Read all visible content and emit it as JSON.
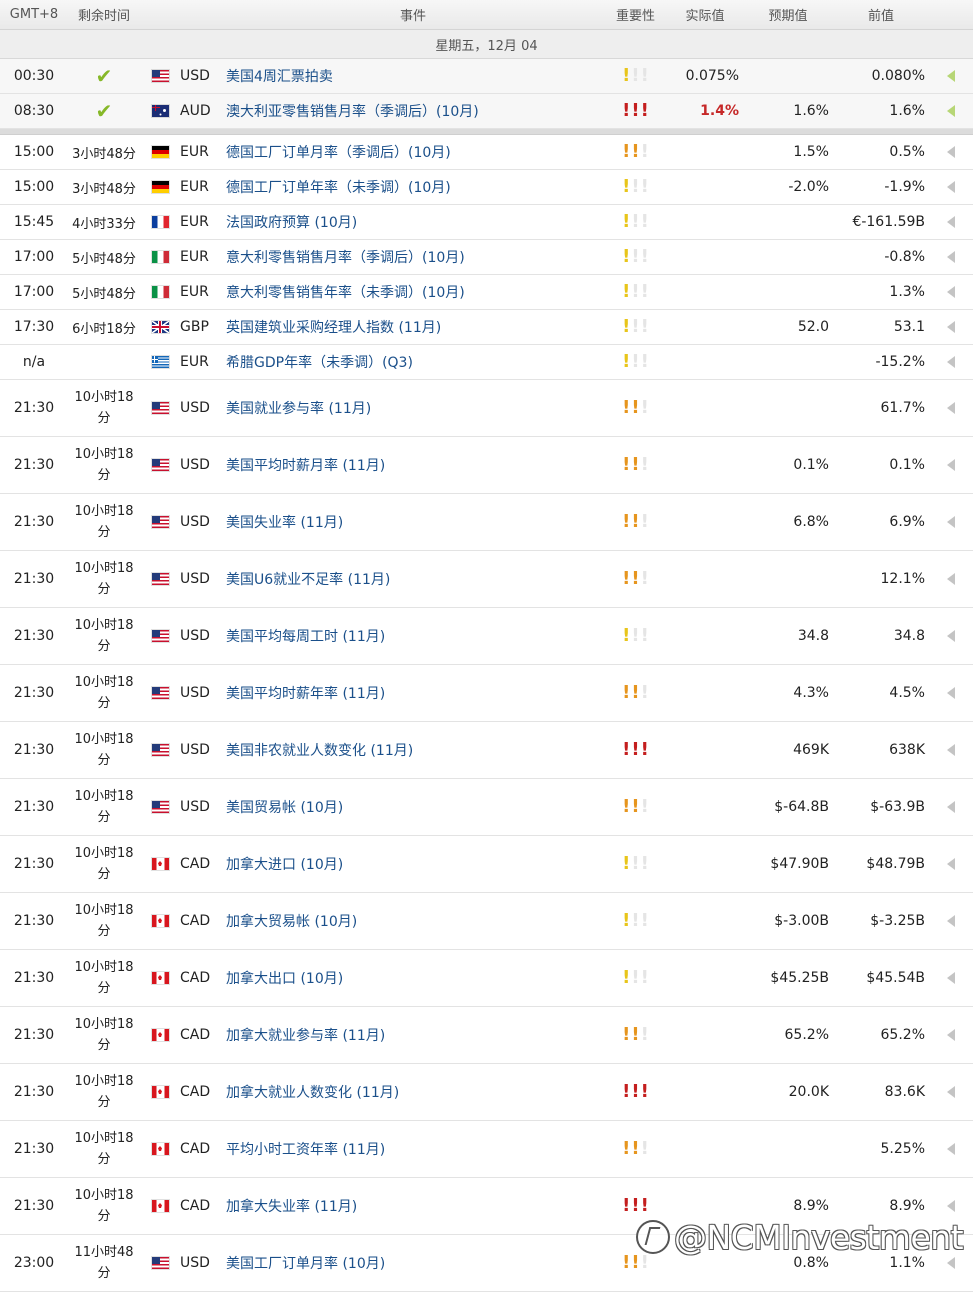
{
  "header": {
    "timezone": "GMT+8",
    "remaining": "剩余时间",
    "event": "事件",
    "importance": "重要性",
    "actual": "实际值",
    "forecast": "预期值",
    "previous": "前值"
  },
  "day_label": "星期五，12月 04",
  "colors": {
    "actual_highlight": "#c62828",
    "check": "#86b828",
    "event_link": "#1a4f8a"
  },
  "released": [
    {
      "time": "00:30",
      "status_icon": "check-icon",
      "flag": "us",
      "currency": "USD",
      "event": "美国4周汇票拍卖",
      "importance": "low",
      "actual": "0.075%",
      "forecast": "",
      "previous": "0.080%",
      "actual_highlight": false
    },
    {
      "time": "08:30",
      "status_icon": "check-icon",
      "flag": "au",
      "currency": "AUD",
      "event": "澳大利亚零售销售月率（季调后）(10月)",
      "importance": "high",
      "actual": "1.4%",
      "forecast": "1.6%",
      "previous": "1.6%",
      "actual_highlight": true
    }
  ],
  "upcoming": [
    {
      "time": "15:00",
      "rem": "3小时48分",
      "flag": "de",
      "currency": "EUR",
      "event": "德国工厂订单月率（季调后）(10月)",
      "importance": "med",
      "actual": "",
      "forecast": "1.5%",
      "previous": "0.5%"
    },
    {
      "time": "15:00",
      "rem": "3小时48分",
      "flag": "de",
      "currency": "EUR",
      "event": "德国工厂订单年率（未季调）(10月)",
      "importance": "low",
      "actual": "",
      "forecast": "-2.0%",
      "previous": "-1.9%"
    },
    {
      "time": "15:45",
      "rem": "4小时33分",
      "flag": "fr",
      "currency": "EUR",
      "event": "法国政府预算 (10月)",
      "importance": "low",
      "actual": "",
      "forecast": "",
      "previous": "€-161.59B"
    },
    {
      "time": "17:00",
      "rem": "5小时48分",
      "flag": "it",
      "currency": "EUR",
      "event": "意大利零售销售月率（季调后）(10月)",
      "importance": "low",
      "actual": "",
      "forecast": "",
      "previous": "-0.8%"
    },
    {
      "time": "17:00",
      "rem": "5小时48分",
      "flag": "it",
      "currency": "EUR",
      "event": "意大利零售销售年率（未季调）(10月)",
      "importance": "low",
      "actual": "",
      "forecast": "",
      "previous": "1.3%"
    },
    {
      "time": "17:30",
      "rem": "6小时18分",
      "flag": "gb",
      "currency": "GBP",
      "event": "英国建筑业采购经理人指数 (11月)",
      "importance": "low",
      "actual": "",
      "forecast": "52.0",
      "previous": "53.1"
    },
    {
      "time": "n/a",
      "rem": "",
      "flag": "gr",
      "currency": "EUR",
      "event": "希腊GDP年率（未季调）(Q3)",
      "importance": "low",
      "actual": "",
      "forecast": "",
      "previous": "-15.2%"
    },
    {
      "time": "21:30",
      "rem_line1": "10小时18",
      "rem_line2": "分",
      "flag": "us",
      "currency": "USD",
      "event": "美国就业参与率 (11月)",
      "importance": "med",
      "actual": "",
      "forecast": "",
      "previous": "61.7%"
    },
    {
      "time": "21:30",
      "rem_line1": "10小时18",
      "rem_line2": "分",
      "flag": "us",
      "currency": "USD",
      "event": "美国平均时薪月率 (11月)",
      "importance": "med",
      "actual": "",
      "forecast": "0.1%",
      "previous": "0.1%"
    },
    {
      "time": "21:30",
      "rem_line1": "10小时18",
      "rem_line2": "分",
      "flag": "us",
      "currency": "USD",
      "event": "美国失业率 (11月)",
      "importance": "med",
      "actual": "",
      "forecast": "6.8%",
      "previous": "6.9%"
    },
    {
      "time": "21:30",
      "rem_line1": "10小时18",
      "rem_line2": "分",
      "flag": "us",
      "currency": "USD",
      "event": "美国U6就业不足率 (11月)",
      "importance": "med",
      "actual": "",
      "forecast": "",
      "previous": "12.1%"
    },
    {
      "time": "21:30",
      "rem_line1": "10小时18",
      "rem_line2": "分",
      "flag": "us",
      "currency": "USD",
      "event": "美国平均每周工时 (11月)",
      "importance": "low",
      "actual": "",
      "forecast": "34.8",
      "previous": "34.8"
    },
    {
      "time": "21:30",
      "rem_line1": "10小时18",
      "rem_line2": "分",
      "flag": "us",
      "currency": "USD",
      "event": "美国平均时薪年率 (11月)",
      "importance": "med",
      "actual": "",
      "forecast": "4.3%",
      "previous": "4.5%"
    },
    {
      "time": "21:30",
      "rem_line1": "10小时18",
      "rem_line2": "分",
      "flag": "us",
      "currency": "USD",
      "event": "美国非农就业人数变化 (11月)",
      "importance": "high",
      "actual": "",
      "forecast": "469K",
      "previous": "638K"
    },
    {
      "time": "21:30",
      "rem_line1": "10小时18",
      "rem_line2": "分",
      "flag": "us",
      "currency": "USD",
      "event": "美国贸易帐 (10月)",
      "importance": "med",
      "actual": "",
      "forecast": "$-64.8B",
      "previous": "$-63.9B"
    },
    {
      "time": "21:30",
      "rem_line1": "10小时18",
      "rem_line2": "分",
      "flag": "ca",
      "currency": "CAD",
      "event": "加拿大进口 (10月)",
      "importance": "low",
      "actual": "",
      "forecast": "$47.90B",
      "previous": "$48.79B"
    },
    {
      "time": "21:30",
      "rem_line1": "10小时18",
      "rem_line2": "分",
      "flag": "ca",
      "currency": "CAD",
      "event": "加拿大贸易帐 (10月)",
      "importance": "low",
      "actual": "",
      "forecast": "$-3.00B",
      "previous": "$-3.25B"
    },
    {
      "time": "21:30",
      "rem_line1": "10小时18",
      "rem_line2": "分",
      "flag": "ca",
      "currency": "CAD",
      "event": "加拿大出口 (10月)",
      "importance": "low",
      "actual": "",
      "forecast": "$45.25B",
      "previous": "$45.54B"
    },
    {
      "time": "21:30",
      "rem_line1": "10小时18",
      "rem_line2": "分",
      "flag": "ca",
      "currency": "CAD",
      "event": "加拿大就业参与率 (11月)",
      "importance": "med",
      "actual": "",
      "forecast": "65.2%",
      "previous": "65.2%"
    },
    {
      "time": "21:30",
      "rem_line1": "10小时18",
      "rem_line2": "分",
      "flag": "ca",
      "currency": "CAD",
      "event": "加拿大就业人数变化 (11月)",
      "importance": "high",
      "actual": "",
      "forecast": "20.0K",
      "previous": "83.6K"
    },
    {
      "time": "21:30",
      "rem_line1": "10小时18",
      "rem_line2": "分",
      "flag": "ca",
      "currency": "CAD",
      "event": "平均小时工资年率 (11月)",
      "importance": "med",
      "actual": "",
      "forecast": "",
      "previous": "5.25%"
    },
    {
      "time": "21:30",
      "rem_line1": "10小时18",
      "rem_line2": "分",
      "flag": "ca",
      "currency": "CAD",
      "event": "加拿大失业率 (11月)",
      "importance": "high",
      "actual": "",
      "forecast": "8.9%",
      "previous": "8.9%"
    },
    {
      "time": "23:00",
      "rem_line1": "11小时48",
      "rem_line2": "分",
      "flag": "us",
      "currency": "USD",
      "event": "美国工厂订单月率 (10月)",
      "importance": "med",
      "actual": "",
      "forecast": "0.8%",
      "previous": "1.1%"
    }
  ],
  "watermark": "@NCMInvestment",
  "icons": {
    "importance": "exclamation-icon",
    "expand": "triangle-left-icon",
    "status": "check-icon"
  }
}
